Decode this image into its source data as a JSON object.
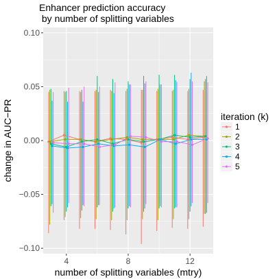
{
  "chart_data": {
    "type": "line",
    "title_lines": [
      "Enhancer prediction accuracy",
      " by number of splitting variables"
    ],
    "xlabel": "number of splitting variables (mtry)",
    "ylabel": "change in AUC−PR",
    "xlim": [
      2.5,
      13.5
    ],
    "ylim": [
      -0.105,
      0.105
    ],
    "x_ticks": [
      4,
      8,
      12
    ],
    "y_ticks": [
      -0.1,
      -0.05,
      0.0,
      0.05,
      0.1
    ],
    "y_tick_labels": [
      "−0.10",
      "−0.05",
      "0.00",
      "0.05",
      "0.10"
    ],
    "x_tick_labels": [
      "4",
      "8",
      "12"
    ],
    "grid": true,
    "legend_position": "right",
    "legend_title": "iteration (k)",
    "dodge": 0.3,
    "x": [
      3,
      4,
      5,
      6,
      7,
      8,
      9,
      10,
      11,
      12,
      13
    ],
    "series": [
      {
        "name": "1",
        "color": "#F8766D",
        "mean": [
          -0.001,
          0.005,
          0.001,
          -0.001,
          0.002,
          0.001,
          -0.002,
          0.001,
          0.003,
          0.001,
          0.003
        ],
        "lower": [
          -0.086,
          -0.074,
          -0.082,
          -0.082,
          -0.083,
          -0.087,
          -0.096,
          -0.084,
          -0.081,
          -0.082,
          -0.08
        ],
        "upper": [
          0.045,
          0.046,
          0.046,
          0.046,
          0.047,
          0.046,
          0.047,
          0.046,
          0.046,
          0.046,
          0.047
        ]
      },
      {
        "name": "2",
        "color": "#A3A500",
        "mean": [
          -0.001,
          0.001,
          0.001,
          -0.001,
          0.001,
          0.003,
          0.001,
          0.001,
          0.001,
          0.005,
          0.004
        ],
        "lower": [
          -0.078,
          -0.071,
          -0.072,
          -0.073,
          -0.074,
          -0.074,
          -0.073,
          -0.074,
          -0.073,
          -0.073,
          -0.068
        ],
        "upper": [
          0.047,
          0.045,
          0.045,
          0.047,
          0.046,
          0.048,
          0.047,
          0.048,
          0.047,
          0.048,
          0.055
        ]
      },
      {
        "name": "3",
        "color": "#00BF7D",
        "mean": [
          -0.003,
          -0.006,
          -0.001,
          0.001,
          -0.003,
          0.001,
          -0.001,
          0.001,
          0.005,
          0.003,
          0.004
        ],
        "lower": [
          -0.061,
          -0.066,
          -0.065,
          -0.062,
          -0.066,
          -0.063,
          -0.066,
          -0.063,
          -0.063,
          -0.066,
          -0.068
        ],
        "upper": [
          0.048,
          0.046,
          0.047,
          0.06,
          0.057,
          0.055,
          0.06,
          0.061,
          0.061,
          0.057,
          0.057
        ]
      },
      {
        "name": "4",
        "color": "#00B0F6",
        "mean": [
          -0.005,
          -0.007,
          -0.006,
          -0.003,
          -0.005,
          -0.004,
          -0.006,
          0.001,
          -0.003,
          0.001,
          0.001
        ],
        "lower": [
          -0.059,
          -0.062,
          -0.06,
          -0.06,
          -0.063,
          -0.061,
          -0.063,
          -0.061,
          -0.062,
          -0.061,
          -0.067
        ],
        "upper": [
          0.037,
          0.036,
          0.036,
          0.045,
          0.044,
          0.052,
          0.053,
          0.052,
          0.056,
          0.063,
          0.06
        ]
      },
      {
        "name": "5",
        "color": "#E76BF3",
        "mean": [
          -0.002,
          -0.003,
          -0.003,
          -0.006,
          -0.004,
          0.004,
          0.003,
          -0.001,
          -0.001,
          -0.004,
          0.002
        ],
        "lower": [
          -0.067,
          -0.058,
          -0.061,
          -0.06,
          -0.062,
          -0.062,
          -0.059,
          -0.062,
          -0.062,
          -0.058,
          -0.058
        ],
        "upper": [
          0.045,
          0.049,
          0.05,
          0.05,
          0.054,
          0.052,
          0.055,
          0.052,
          0.054,
          0.055,
          0.054
        ]
      }
    ]
  }
}
